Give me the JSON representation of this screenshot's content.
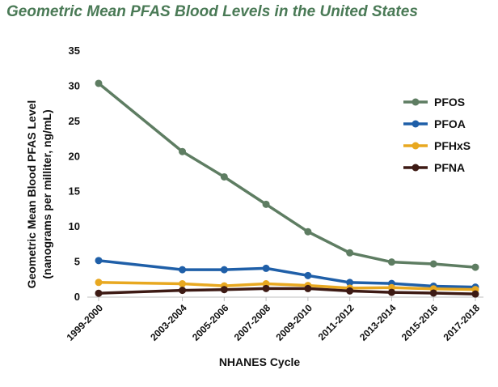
{
  "chart_data": {
    "type": "line",
    "title": "Geometric Mean PFAS Blood Levels in the United States",
    "xlabel": "NHANES Cycle",
    "ylabel_line1": "Geometric Mean Blood PFAS Level",
    "ylabel_line2": "(nanograms per milliter, ng/mL)",
    "categories": [
      "1999-2000",
      "2003-2004",
      "2005-2006",
      "2007-2008",
      "2009-2010",
      "2011-2012",
      "2013-2014",
      "2015-2016",
      "2017-2018"
    ],
    "x_years": [
      1999,
      2003,
      2005,
      2007,
      2009,
      2011,
      2013,
      2015,
      2017
    ],
    "ylim": [
      0,
      35
    ],
    "yticks": [
      0,
      5,
      10,
      15,
      20,
      25,
      30,
      35
    ],
    "grid": false,
    "legend_position": "right",
    "series": [
      {
        "name": "PFOS",
        "color": "#5e7d62",
        "values": [
          30.4,
          20.7,
          17.1,
          13.2,
          9.3,
          6.3,
          4.99,
          4.72,
          4.25
        ]
      },
      {
        "name": "PFOA",
        "color": "#1f5fa8",
        "values": [
          5.2,
          3.9,
          3.9,
          4.1,
          3.07,
          2.08,
          1.94,
          1.56,
          1.42
        ]
      },
      {
        "name": "PFHxS",
        "color": "#e8a820",
        "values": [
          2.1,
          1.9,
          1.6,
          1.9,
          1.66,
          1.28,
          1.35,
          1.18,
          1.08
        ]
      },
      {
        "name": "PFNA",
        "color": "#3d1a14",
        "values": [
          0.55,
          0.97,
          1.07,
          1.23,
          1.22,
          0.88,
          0.68,
          0.58,
          0.44
        ]
      }
    ]
  }
}
